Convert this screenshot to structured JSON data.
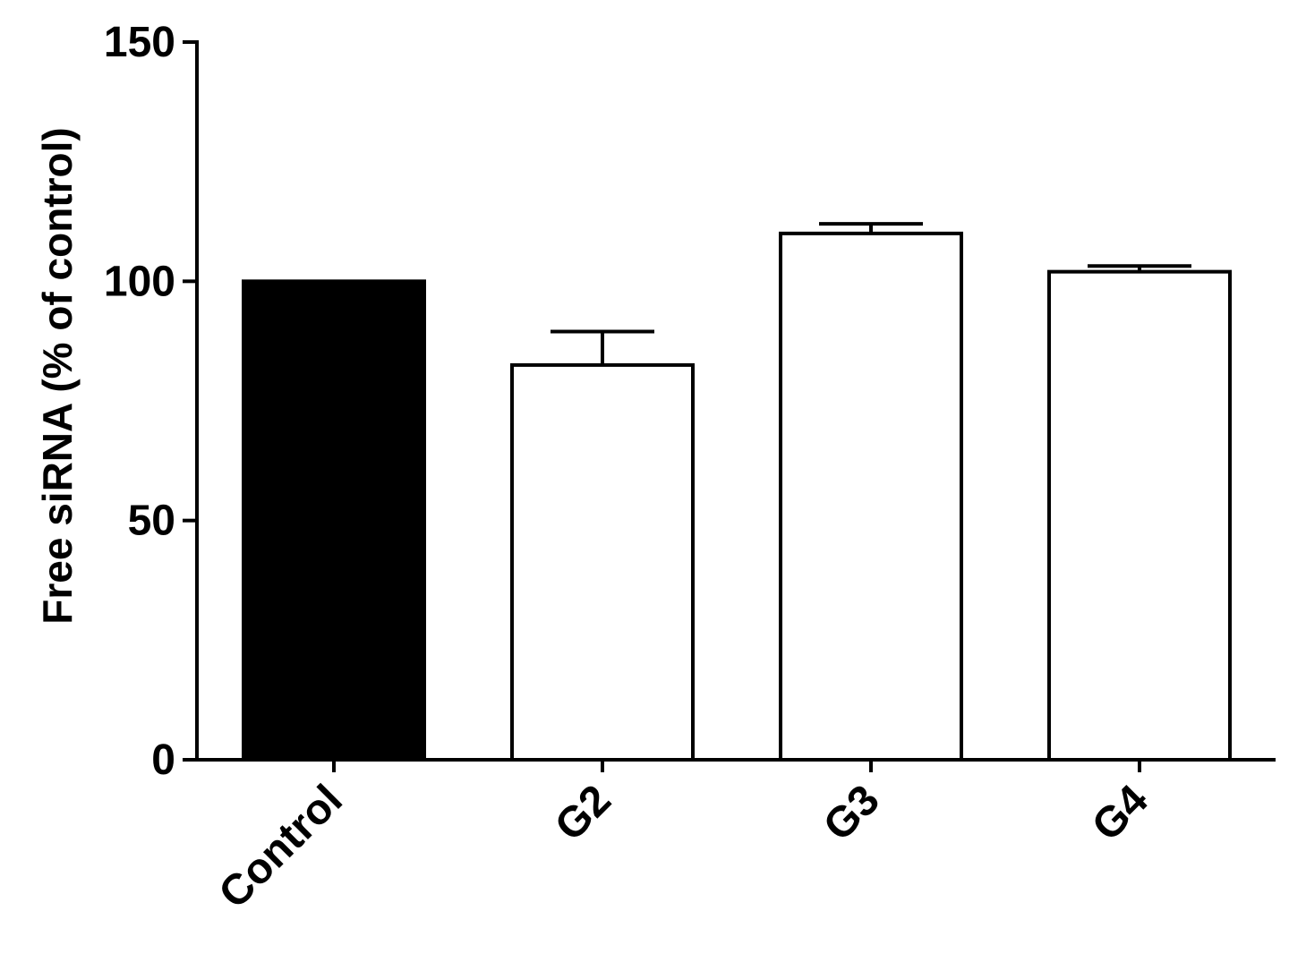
{
  "chart_data": {
    "type": "bar",
    "title": "",
    "xlabel": "",
    "ylabel": "Free siRNA (% of control)",
    "ylim": [
      0,
      150
    ],
    "yticks": [
      0,
      50,
      100,
      150
    ],
    "grid": false,
    "categories": [
      "Control",
      "G2",
      "G3",
      "G4"
    ],
    "values": [
      100,
      82.5,
      110,
      102
    ],
    "errors": [
      0,
      7,
      2,
      1.2
    ],
    "fills": [
      "#000000",
      "#ffffff",
      "#ffffff",
      "#ffffff"
    ],
    "edge_color": "#000000"
  }
}
